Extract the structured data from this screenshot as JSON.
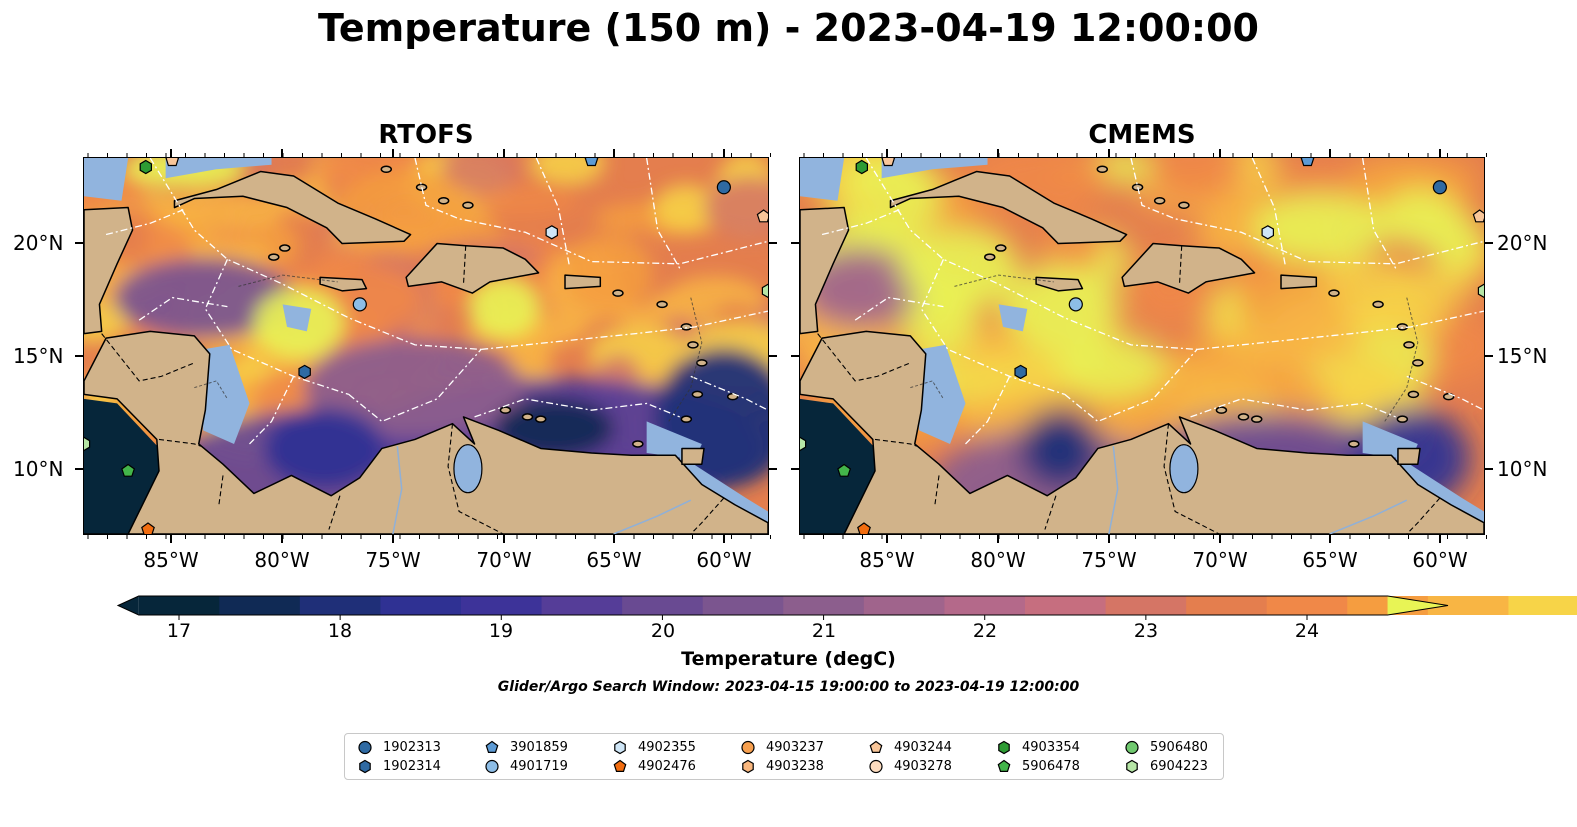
{
  "title": "Temperature (150 m) - 2023-04-19 12:00:00",
  "panels": [
    {
      "id": "rtofs",
      "title": "RTOFS"
    },
    {
      "id": "cmems",
      "title": "CMEMS"
    }
  ],
  "lon_ticks": [
    "85°W",
    "80°W",
    "75°W",
    "70°W",
    "65°W",
    "60°W"
  ],
  "lat_ticks": [
    "20°N",
    "15°N",
    "10°N"
  ],
  "colorbar": {
    "label": "Temperature (degC)",
    "ticks": [
      "17",
      "18",
      "19",
      "20",
      "21",
      "22",
      "23",
      "24"
    ],
    "range": [
      16.75,
      24.5
    ],
    "colors": [
      "#06263a",
      "#102a55",
      "#1f2f78",
      "#2f3193",
      "#3d3399",
      "#553d98",
      "#694a92",
      "#7b558f",
      "#8c5e8d",
      "#a0648c",
      "#b4698a",
      "#c66e7f",
      "#d57565",
      "#e47e4e",
      "#f08848",
      "#f59d40",
      "#f8b544",
      "#f7d448",
      "#e8f455"
    ]
  },
  "caption": "Glider/Argo Search Window: 2023-04-15 19:00:00 to 2023-04-19 12:00:00",
  "legend": [
    {
      "id": "1902313",
      "marker": "circle",
      "color": "#2f6aa3"
    },
    {
      "id": "1902314",
      "marker": "hexagon",
      "color": "#2f6aa3"
    },
    {
      "id": "3901859",
      "marker": "pentagon",
      "color": "#5d9bd5"
    },
    {
      "id": "4901719",
      "marker": "circle",
      "color": "#8dbde6"
    },
    {
      "id": "4902355",
      "marker": "hexagon",
      "color": "#cfe6f7"
    },
    {
      "id": "4902476",
      "marker": "pentagon",
      "color": "#f26d10"
    },
    {
      "id": "4903237",
      "marker": "circle",
      "color": "#f7a04f"
    },
    {
      "id": "4903238",
      "marker": "hexagon",
      "color": "#f9b77e"
    },
    {
      "id": "4903244",
      "marker": "pentagon",
      "color": "#f9c699"
    },
    {
      "id": "4903278",
      "marker": "circle",
      "color": "#fddcbf"
    },
    {
      "id": "4903354",
      "marker": "hexagon",
      "color": "#2e9c34"
    },
    {
      "id": "5906478",
      "marker": "pentagon",
      "color": "#43b54a"
    },
    {
      "id": "5906480",
      "marker": "circle",
      "color": "#70c96f"
    },
    {
      "id": "6904223",
      "marker": "hexagon",
      "color": "#b6e6a6"
    }
  ],
  "map_colors": {
    "land": "#d1b38a",
    "shelf": "#91b4de",
    "coast": "#000000",
    "deep": "#06263a",
    "track": "#ffffff"
  },
  "markers_on_map": [
    {
      "float": "1902313",
      "lon": -60.0,
      "lat": 22.4
    },
    {
      "float": "1902314",
      "lon": -79.0,
      "lat": 14.2
    },
    {
      "float": "3901859",
      "lon": -66.0,
      "lat": 23.6
    },
    {
      "float": "4901719",
      "lon": -76.5,
      "lat": 17.2
    },
    {
      "float": "4902355",
      "lon": -67.8,
      "lat": 20.4
    },
    {
      "float": "4902476",
      "lon": -86.1,
      "lat": 7.2
    },
    {
      "float": "4903244",
      "lon": -58.2,
      "lat": 21.1
    },
    {
      "float": "4903244",
      "lon": -85.0,
      "lat": 23.6
    },
    {
      "float": "4903354",
      "lon": -86.2,
      "lat": 23.3
    },
    {
      "float": "5906478",
      "lon": -87.0,
      "lat": 9.8
    },
    {
      "float": "6904223",
      "lon": -58.0,
      "lat": 17.8
    },
    {
      "float": "6904223",
      "lon": -89.0,
      "lat": 11.0
    }
  ]
}
